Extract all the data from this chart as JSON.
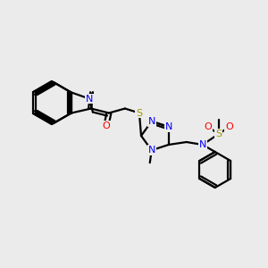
{
  "bg_color": "#ebebeb",
  "atom_colors": {
    "C": "#000000",
    "N": "#0000ff",
    "O": "#ff0000",
    "S": "#999900",
    "H": "#000000"
  },
  "bond_color": "#000000",
  "bond_width": 1.6,
  "figsize": [
    3.0,
    3.0
  ],
  "dpi": 100,
  "scale": 1.0
}
